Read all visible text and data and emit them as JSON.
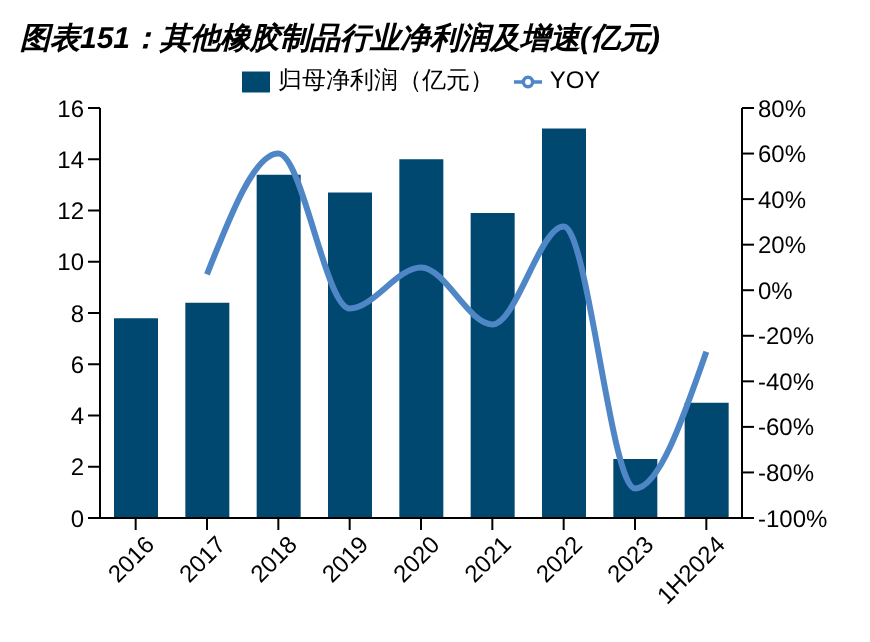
{
  "chart_data": {
    "type": "bar",
    "title": "图表151：其他橡胶制品行业净利润及增速(亿元)",
    "categories": [
      "2016",
      "2017",
      "2018",
      "2019",
      "2020",
      "2021",
      "2022",
      "2023",
      "1H2024"
    ],
    "series": [
      {
        "name": "归母净利润（亿元）",
        "color": "#004870",
        "values": [
          7.8,
          8.4,
          13.4,
          12.7,
          14.0,
          11.9,
          15.2,
          2.3,
          4.5
        ]
      },
      {
        "name": "YOY",
        "type": "line",
        "axis": "y2",
        "color": "#4f86c6",
        "values": [
          null,
          7,
          60,
          -8,
          10,
          -15,
          28,
          -87,
          -27
        ]
      }
    ],
    "ylim": [
      0,
      16
    ],
    "yticks": [
      0,
      2,
      4,
      6,
      8,
      10,
      12,
      14,
      16
    ],
    "y2lim": [
      -100,
      80
    ],
    "y2ticks": [
      {
        "value": -100,
        "label": "-100%"
      },
      {
        "value": -80,
        "label": "-80%"
      },
      {
        "value": -60,
        "label": "-60%"
      },
      {
        "value": -40,
        "label": "-40%"
      },
      {
        "value": -20,
        "label": "-20%"
      },
      {
        "value": 0,
        "label": "0%"
      },
      {
        "value": 20,
        "label": "20%"
      },
      {
        "value": 40,
        "label": "40%"
      },
      {
        "value": 60,
        "label": "60%"
      },
      {
        "value": 80,
        "label": "80%"
      }
    ],
    "legend": "top",
    "marker": "none"
  }
}
